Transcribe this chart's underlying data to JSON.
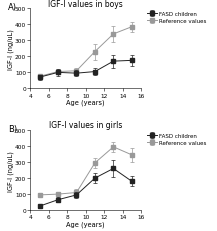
{
  "panel_A": {
    "title": "IGF-I values in boys",
    "fasd": {
      "x": [
        5,
        7,
        9,
        11,
        13,
        15
      ],
      "y": [
        70,
        100,
        95,
        105,
        170,
        175
      ],
      "yerr": [
        15,
        20,
        20,
        20,
        40,
        35
      ]
    },
    "ref": {
      "x": [
        5,
        7,
        9,
        11,
        13,
        15
      ],
      "y": [
        75,
        105,
        110,
        230,
        340,
        385
      ],
      "yerr": [
        10,
        15,
        15,
        50,
        50,
        30
      ]
    }
  },
  "panel_B": {
    "title": "IGF-I values in girls",
    "fasd": {
      "x": [
        5,
        7,
        9,
        11,
        13,
        15
      ],
      "y": [
        25,
        65,
        95,
        200,
        260,
        180
      ],
      "yerr": [
        10,
        15,
        20,
        30,
        55,
        30
      ]
    },
    "ref": {
      "x": [
        5,
        7,
        9,
        11,
        13,
        15
      ],
      "y": [
        95,
        100,
        110,
        295,
        395,
        345
      ],
      "yerr": [
        10,
        15,
        20,
        30,
        30,
        45
      ]
    }
  },
  "ylabel": "IGF-I (ng/uL)",
  "xlabel": "Age (years)",
  "ylim": [
    0,
    500
  ],
  "xlim": [
    4,
    16
  ],
  "xticks": [
    4,
    6,
    8,
    10,
    12,
    14,
    16
  ],
  "yticks": [
    0,
    100,
    200,
    300,
    400,
    500
  ],
  "fasd_color": "#222222",
  "ref_color": "#999999",
  "fasd_label": "FASD children",
  "ref_label": "Reference values",
  "panel_labels": [
    "A)",
    "B)"
  ],
  "title_fontsize": 5.5,
  "label_fontsize": 4.8,
  "tick_fontsize": 4.2,
  "legend_fontsize": 4.0,
  "marker_size": 2.5,
  "line_width": 0.7,
  "cap_size": 1.2
}
